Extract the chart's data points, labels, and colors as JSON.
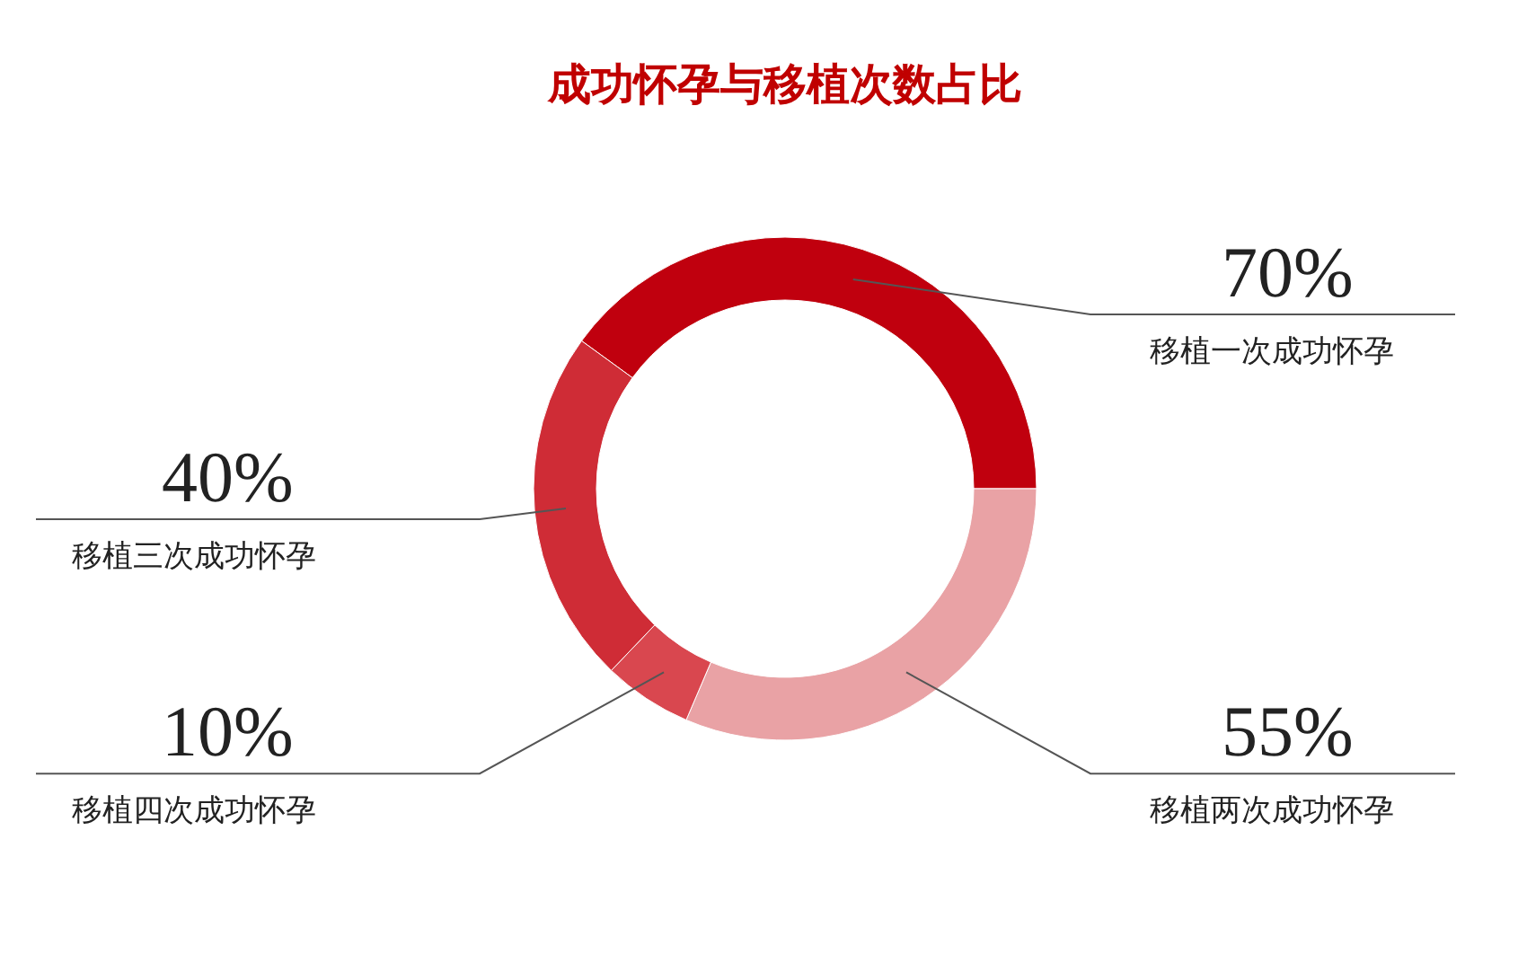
{
  "chart_data": {
    "type": "donut",
    "title": "成功怀孕与移植次数占比",
    "categories": [
      "移植一次成功怀孕",
      "移植两次成功怀孕",
      "移植四次成功怀孕",
      "移植三次成功怀孕"
    ],
    "values": [
      70,
      55,
      10,
      40
    ],
    "value_labels": [
      "70%",
      "55%",
      "10%",
      "40%"
    ],
    "colors": [
      "#c0000e",
      "#e9a2a5",
      "#d9474f",
      "#cf2c36"
    ]
  }
}
